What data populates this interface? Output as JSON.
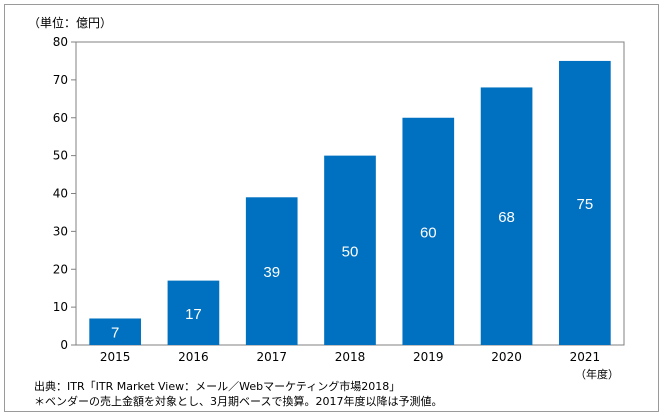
{
  "chart_data": {
    "type": "bar",
    "categories": [
      "2015",
      "2016",
      "2017",
      "2018",
      "2019",
      "2020",
      "2021"
    ],
    "values": [
      7,
      17,
      39,
      50,
      60,
      68,
      75
    ],
    "data_labels": [
      "7",
      "17",
      "39",
      "50",
      "60",
      "68",
      "75"
    ],
    "ylim": [
      0,
      80
    ],
    "yticks": [
      0,
      10,
      20,
      30,
      40,
      50,
      60,
      70,
      80
    ],
    "ylabel": "（単位：億円）",
    "xlabel": "（年度）",
    "grid": false,
    "legend": "none",
    "bar_color": "#0070C0"
  },
  "notes": {
    "source": "出典：ITR「ITR Market View：メール／Webマーケティング市場2018」",
    "footnote": "＊ベンダーの売上金額を対象とし、3月期ベースで換算。2017年度以降は予測値。"
  }
}
